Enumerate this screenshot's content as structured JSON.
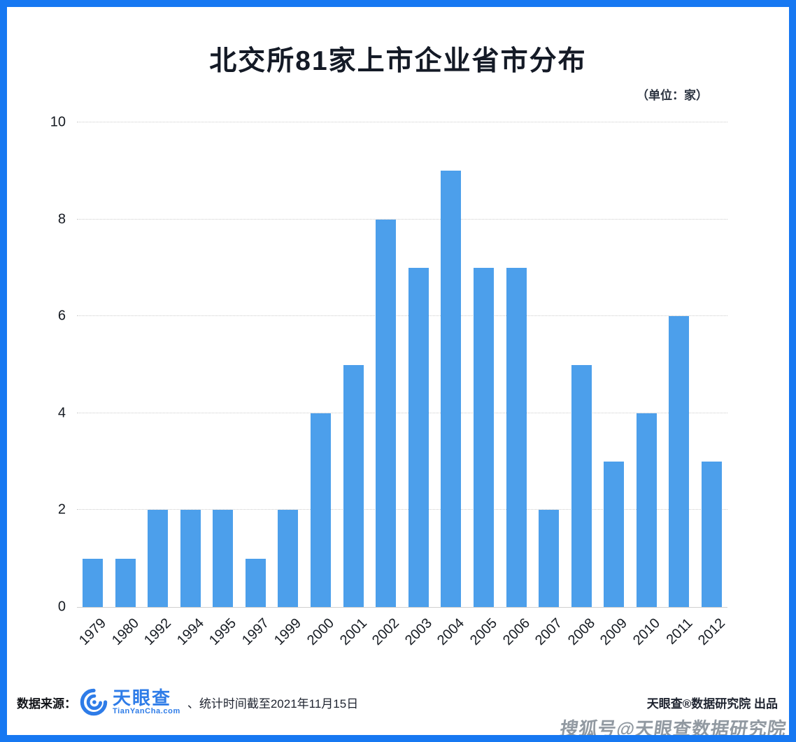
{
  "title": "北交所81家上市企业省市分布",
  "unit_label": "（单位：家）",
  "chart_data": {
    "type": "bar",
    "title": "北交所81家上市企业省市分布",
    "unit": "家",
    "categories": [
      "1979",
      "1980",
      "1992",
      "1994",
      "1995",
      "1997",
      "1999",
      "2000",
      "2001",
      "2002",
      "2003",
      "2004",
      "2005",
      "2006",
      "2007",
      "2008",
      "2009",
      "2010",
      "2011",
      "2012"
    ],
    "values": [
      1,
      1,
      2,
      2,
      2,
      1,
      2,
      4,
      5,
      8,
      7,
      9,
      7,
      7,
      2,
      5,
      3,
      4,
      6,
      3
    ],
    "total": 81,
    "ylim": [
      0,
      10
    ],
    "yticks": [
      0,
      2,
      4,
      6,
      8,
      10
    ],
    "grid": "horizontal-dotted",
    "legend_position": "none",
    "xlabel": "",
    "ylabel": ""
  },
  "footer": {
    "source_label": "数据来源：",
    "logo": {
      "name": "天眼查",
      "subtitle": "TianYanCha.com"
    },
    "note": "、统计时间截至2021年11月15日",
    "credit": "天眼查®数据研究院 出品"
  },
  "watermark": "搜狐号@天眼查数据研究院",
  "colors": {
    "frame": "#1778F2",
    "bar": "#4C9FEB",
    "title": "#141A26",
    "logo_blue": "#2E7CE8",
    "grid": "#CCCCCC",
    "text": "#161B22",
    "watermark": "#76808A"
  }
}
